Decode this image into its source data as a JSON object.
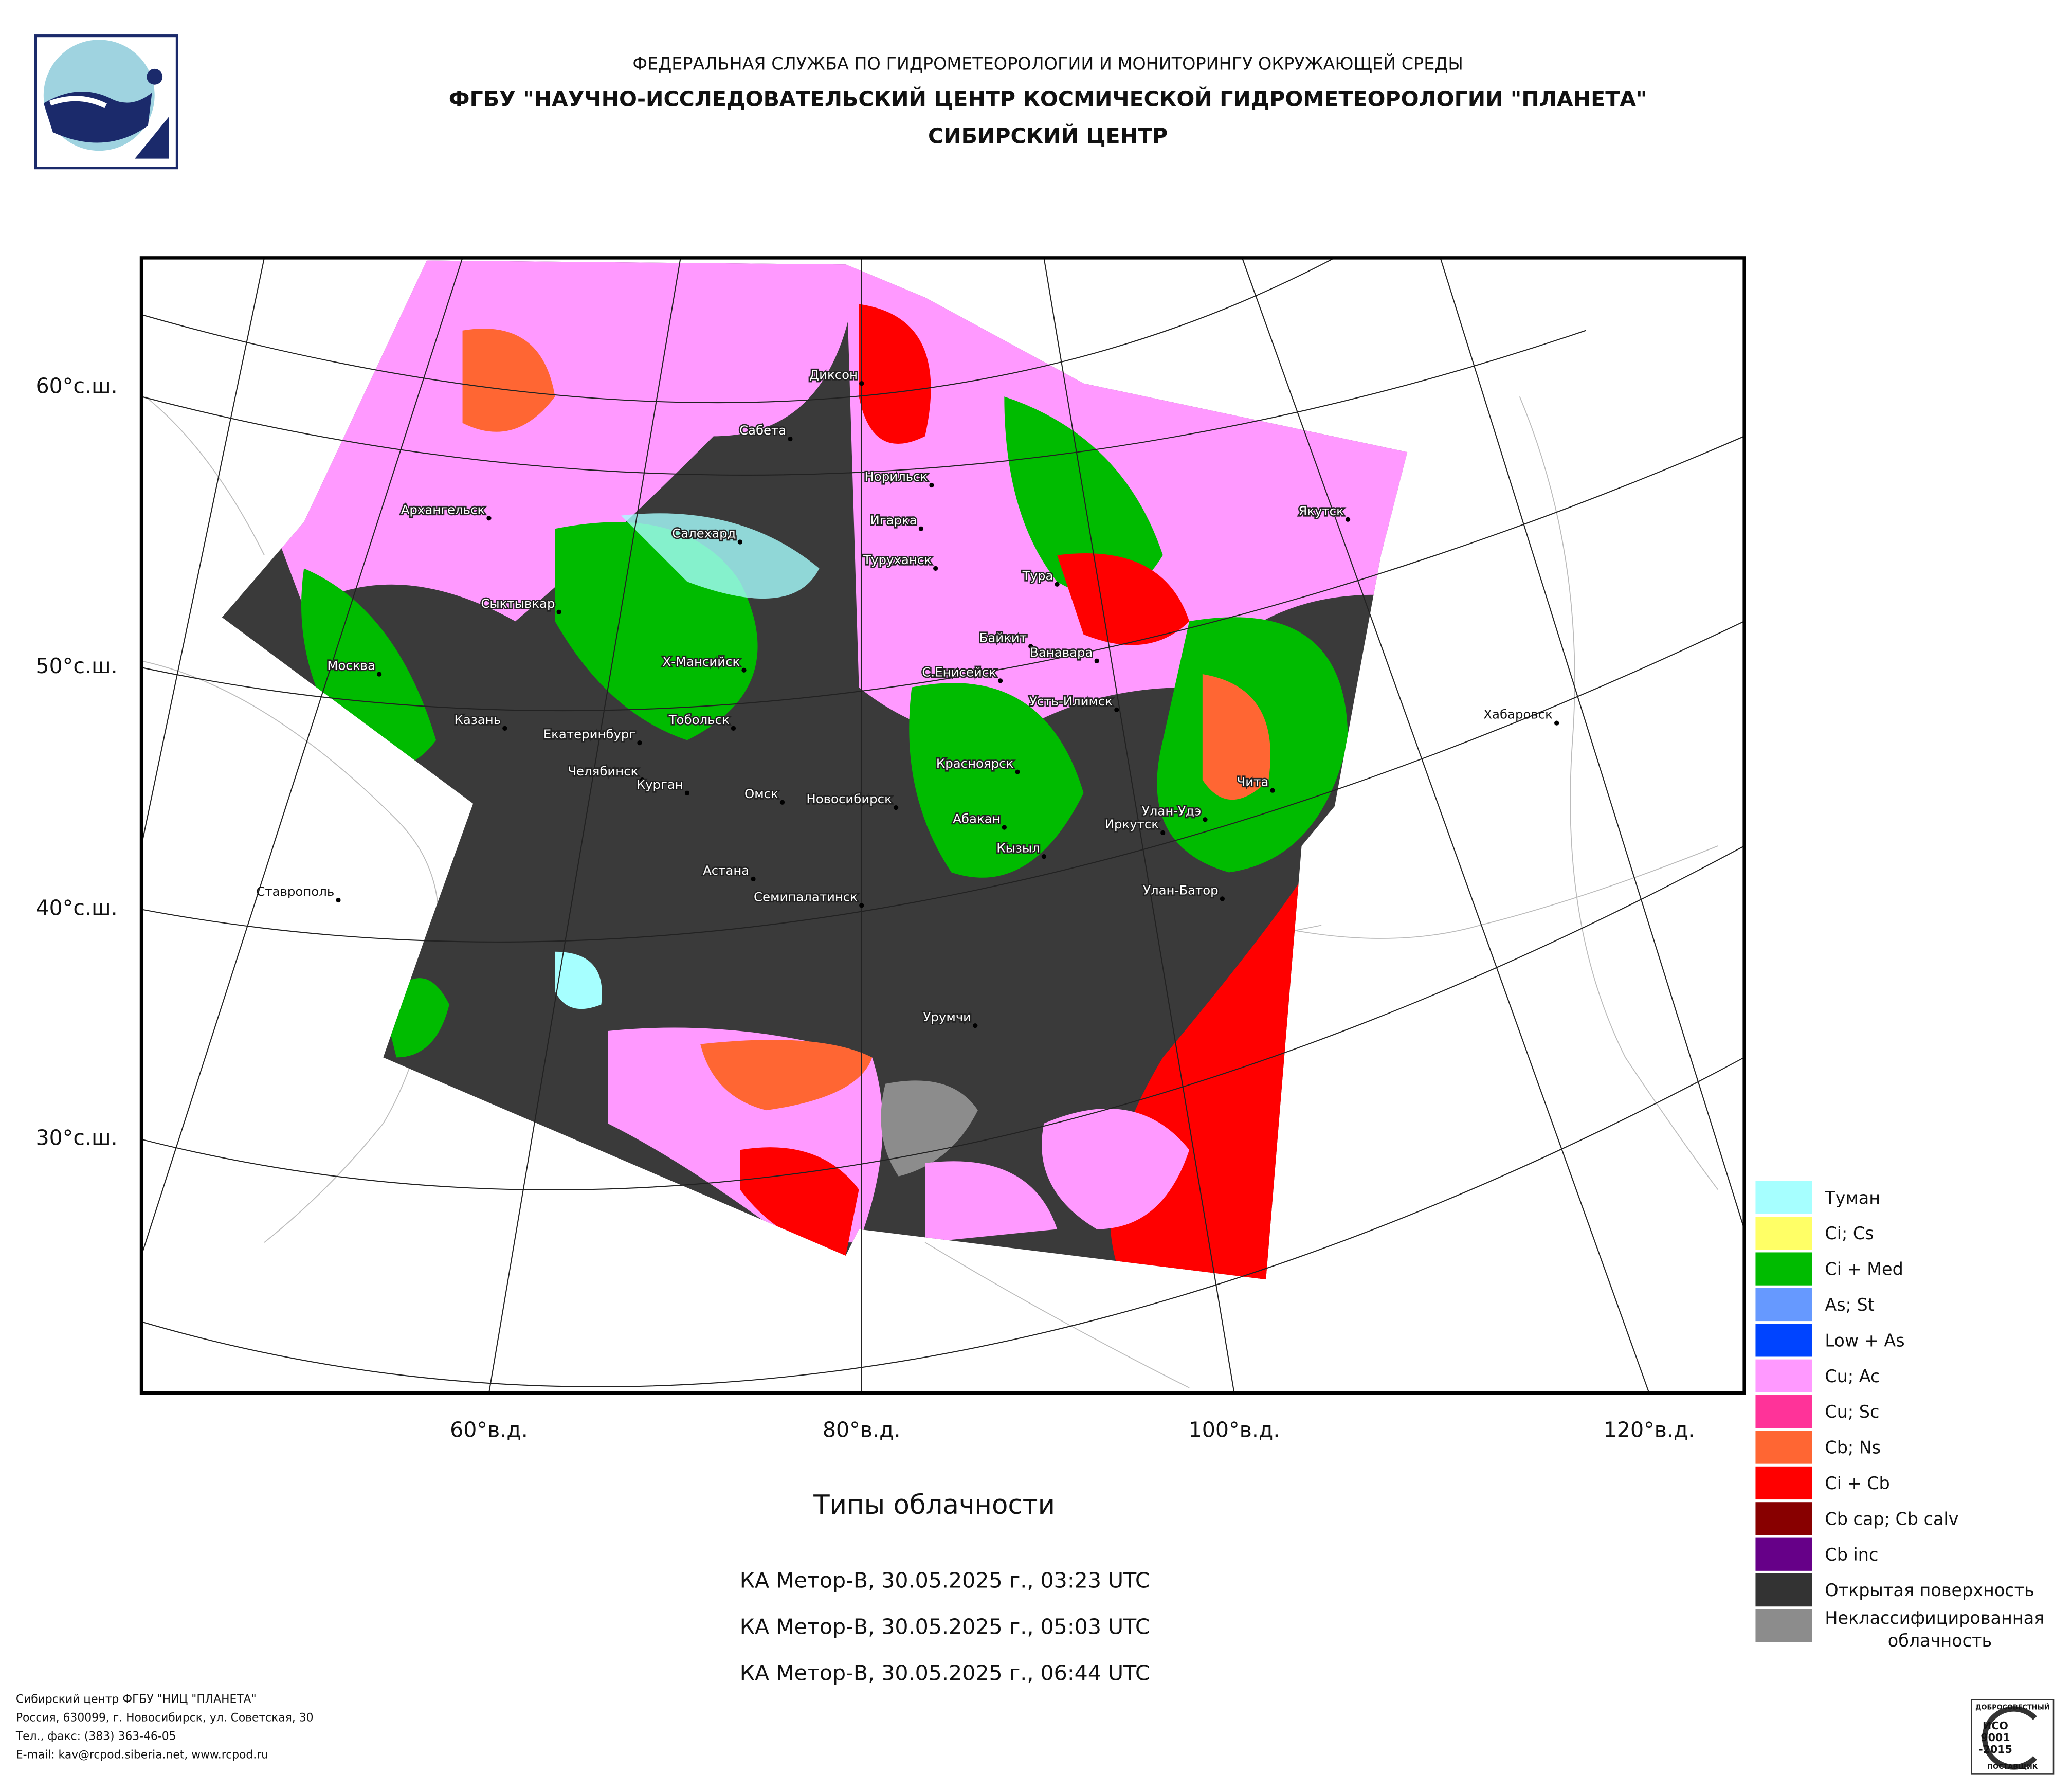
{
  "header": {
    "agency": "ФЕДЕРАЛЬНАЯ СЛУЖБА ПО ГИДРОМЕТЕОРОЛОГИИ И МОНИТОРИНГУ ОКРУЖАЮЩЕЙ СРЕДЫ",
    "center": "ФГБУ \"НАУЧНО-ИССЛЕДОВАТЕЛЬСКИЙ ЦЕНТР КОСМИЧЕСКОЙ ГИДРОМЕТЕОРОЛОГИИ \"ПЛАНЕТА\"",
    "branch": "СИБИРСКИЙ ЦЕНТР"
  },
  "map": {
    "lat_labels": [
      "60°с.ш.",
      "50°с.ш.",
      "40°с.ш.",
      "30°с.ш."
    ],
    "lon_labels": [
      "60°в.д.",
      "80°в.д.",
      "100°в.д.",
      "120°в.д."
    ],
    "cities": [
      "Диксон",
      "Сабета",
      "Норильск",
      "Игарка",
      "Туруханск",
      "Архангельск",
      "Салехард",
      "Сыктывкар",
      "Тура",
      "Якутск",
      "Байкит",
      "Ванавара",
      "Москва",
      "Х-Мансийск",
      "С.Енисейск",
      "Усть-Илимск",
      "Хабаровск",
      "Казань",
      "Екатеринбург",
      "Тобольск",
      "Челябинск",
      "Курган",
      "Омск",
      "Новосибирск",
      "Красноярск",
      "Чита",
      "Улан-Удэ",
      "Абакан",
      "Иркутск",
      "Кызыл",
      "Ставрополь",
      "Астана",
      "Семипалатинск",
      "Улан-Батор",
      "Урумчи"
    ]
  },
  "legend": [
    {
      "label": "Туман",
      "color": "#a6ffff"
    },
    {
      "label": "Ci; Cs",
      "color": "#ffff66"
    },
    {
      "label": "Ci + Med",
      "color": "#00bb00"
    },
    {
      "label": "As; St",
      "color": "#6699ff"
    },
    {
      "label": "Low + As",
      "color": "#0044ff"
    },
    {
      "label": "Cu; Ac",
      "color": "#ff99ff"
    },
    {
      "label": "Cu; Sc",
      "color": "#ff3399"
    },
    {
      "label": "Cb; Ns",
      "color": "#ff6633"
    },
    {
      "label": "Ci + Cb",
      "color": "#ff0000"
    },
    {
      "label": "Cb cap; Cb calv",
      "color": "#880000"
    },
    {
      "label": "Cb inc",
      "color": "#660088"
    },
    {
      "label": "Открытая поверхность",
      "color": "#333333"
    },
    {
      "label": [
        "Неклассифицированная",
        "облачность"
      ],
      "color": "#8c8c8c"
    }
  ],
  "title": "Типы облачности",
  "passes": [
    "КА Метор-B, 30.05.2025 г., 03:23 UTC",
    "КА Метор-B, 30.05.2025 г., 05:03 UTC",
    "КА Метор-B, 30.05.2025 г., 06:44 UTC"
  ],
  "footer": [
    "Сибирский центр ФГБУ \"НИЦ \"ПЛАНЕТА\"",
    "Россия, 630099, г. Новосибирск, ул. Советская, 30",
    "Тел., факс: (383) 363-46-05",
    "E-mail: kav@rcpod.siberia.net, www.rcpod.ru"
  ],
  "badge": [
    "ДОБРОСОВЕСТНЫЙ",
    "ИСО",
    "9001",
    "-2015",
    "ПОСТАВЩИК"
  ]
}
